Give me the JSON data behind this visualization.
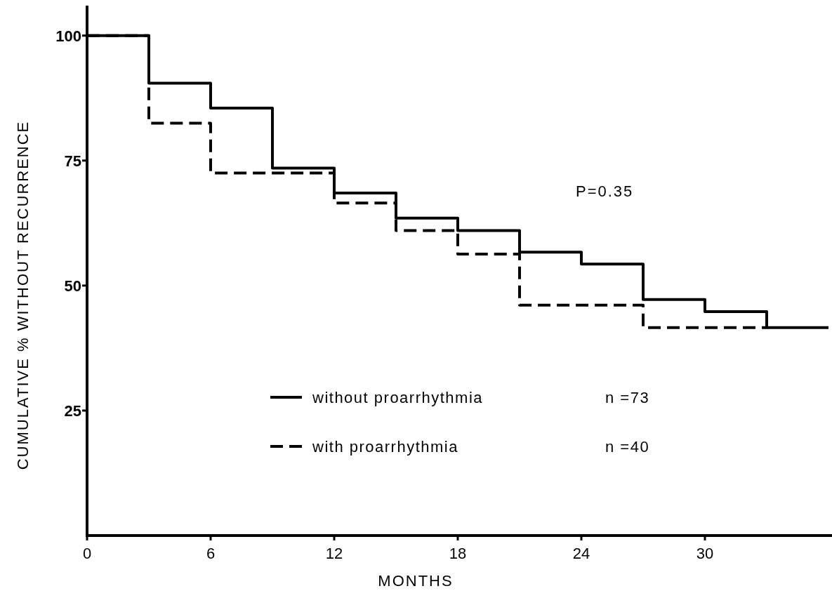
{
  "chart_data": {
    "type": "step",
    "xlabel": "MONTHS",
    "ylabel": "CUMULATIVE % WITHOUT RECURRENCE",
    "xlim": [
      0,
      36
    ],
    "xticks": [
      0,
      6,
      12,
      18,
      24,
      30
    ],
    "ylim": [
      0,
      106
    ],
    "yticks": [
      25,
      50,
      75,
      100
    ],
    "legend": "bottom",
    "grid": false,
    "marker": "none",
    "series": [
      {
        "name": "without proarrhythmia",
        "color": "#000000",
        "line_style": "solid",
        "x": [
          0,
          3,
          6,
          9,
          12,
          15,
          18,
          21,
          24,
          27,
          30,
          33,
          36
        ],
        "values": [
          100,
          90.5,
          85.5,
          73.5,
          68.5,
          63.5,
          61,
          56.7,
          54.3,
          47.2,
          44.8,
          41.6,
          41.6
        ]
      },
      {
        "name": "with proarrhythmia",
        "color": "#000000",
        "line_style": "dashed",
        "x": [
          0,
          3,
          6,
          12,
          15,
          18,
          21,
          27,
          33
        ],
        "values": [
          100,
          82.5,
          72.5,
          66.5,
          61,
          56.3,
          46.1,
          41.6,
          41.6
        ]
      }
    ],
    "annotations": [
      "P=0.35",
      "n =73",
      "n =40"
    ]
  }
}
